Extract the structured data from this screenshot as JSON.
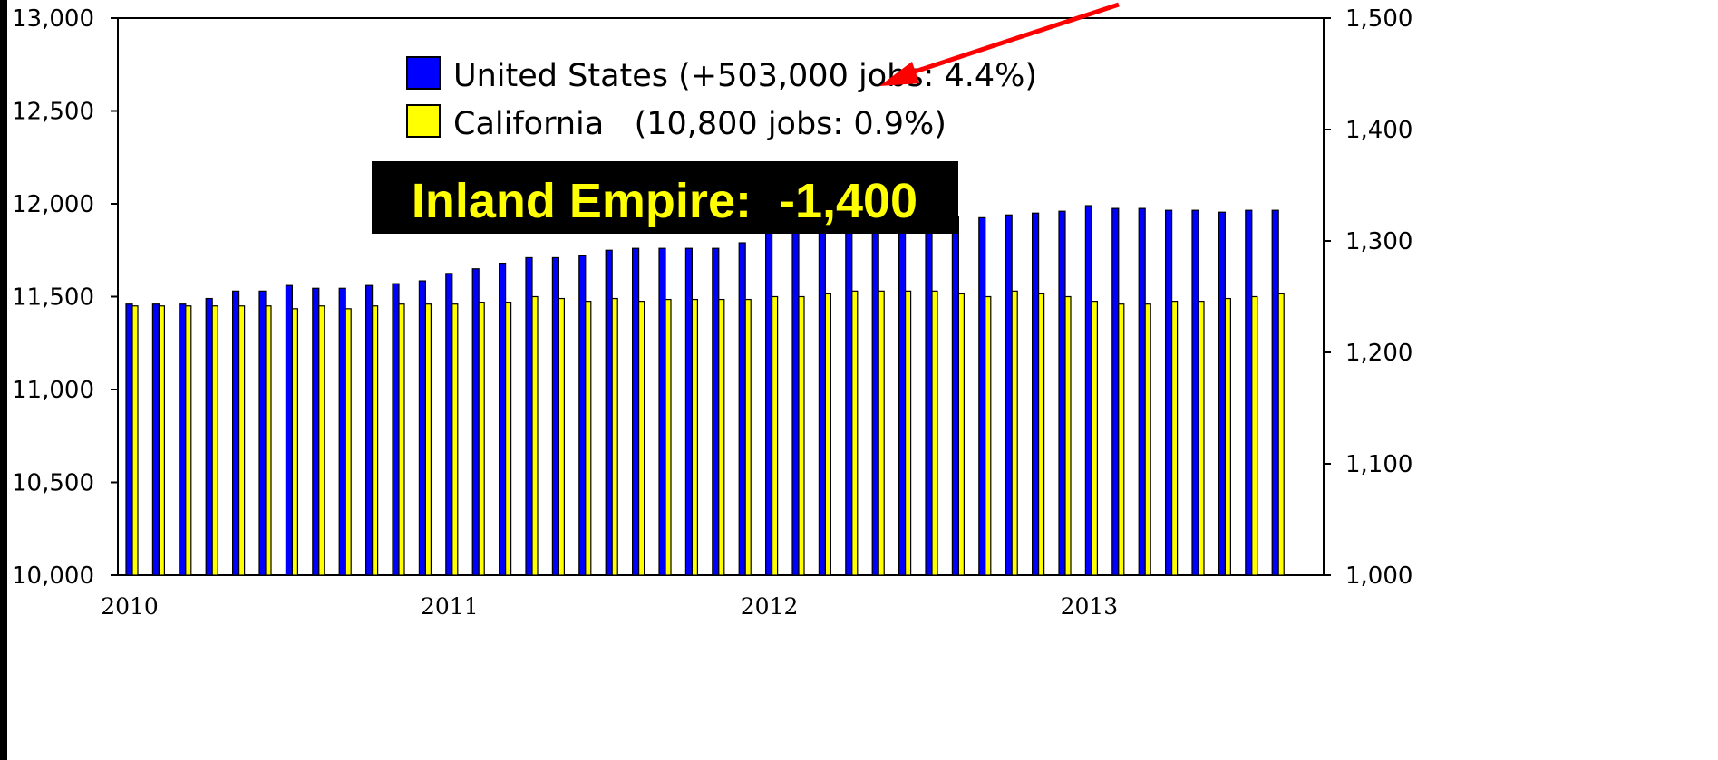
{
  "chart_data": {
    "type": "bar",
    "x_tick_labels": [
      "2010",
      "2011",
      "2012",
      "2013"
    ],
    "y_left": {
      "ylim": [
        10000,
        13000
      ],
      "ticks": [
        "10,000",
        "10,500",
        "11,000",
        "11,500",
        "12,000",
        "12,500",
        "13,000"
      ]
    },
    "y_right": {
      "ylim": [
        1000,
        1500
      ],
      "ticks": [
        "1,000",
        "1,100",
        "1,200",
        "1,300",
        "1,400",
        "1,500"
      ]
    },
    "series": [
      {
        "name": "United States (+503,000 jobs: 4.4%)",
        "axis": "left",
        "color": "#0000ff",
        "values": [
          11460,
          11460,
          11460,
          11490,
          11530,
          11530,
          11560,
          11545,
          11545,
          11560,
          11570,
          11585,
          11625,
          11650,
          11680,
          11710,
          11710,
          11720,
          11750,
          11760,
          11760,
          11760,
          11760,
          11790,
          11850,
          11870,
          11890,
          11900,
          11910,
          11920,
          11920,
          11930,
          11925,
          11940,
          11950,
          11960,
          11990,
          11975,
          11975,
          11965,
          11965,
          11955,
          11965,
          11965
        ]
      },
      {
        "name": "California   (10,800 jobs: 0.9%)",
        "axis": "left",
        "color": "#ffff00",
        "values": [
          11450,
          11450,
          11450,
          11450,
          11450,
          11450,
          11435,
          11450,
          11435,
          11450,
          11460,
          11460,
          11460,
          11470,
          11470,
          11500,
          11490,
          11475,
          11490,
          11475,
          11485,
          11485,
          11485,
          11485,
          11500,
          11500,
          11515,
          11530,
          11530,
          11530,
          11530,
          11515,
          11500,
          11530,
          11515,
          11500,
          11475,
          11460,
          11460,
          11475,
          11475,
          11490,
          11500,
          11515
        ]
      }
    ],
    "annotations": {
      "callout": "Inland Empire:  -1,400"
    }
  },
  "colors": {
    "callout_bg": "#000000",
    "callout_text": "#ffff00",
    "arrow": "#ff0000",
    "bar_outline": "#000000"
  }
}
